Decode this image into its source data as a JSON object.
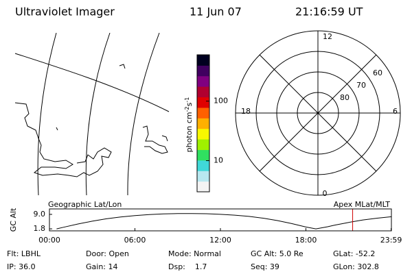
{
  "header": {
    "title": "Ultraviolet Imager",
    "date": "11 Jun 07",
    "time": "21:16:59 UT"
  },
  "colorbar": {
    "label_parts": [
      "photon cm",
      "-2",
      "s",
      "-1"
    ],
    "log": true,
    "lim": [
      3,
      600
    ],
    "ticks": [
      10,
      100
    ],
    "colors": [
      "#f4f4f4",
      "#b8e8f0",
      "#40d8d8",
      "#30e060",
      "#a0f000",
      "#f8f800",
      "#ffb000",
      "#ff6000",
      "#e00000",
      "#b00030",
      "#800080",
      "#400060",
      "#000020"
    ]
  },
  "polar": {
    "lat_min": 50,
    "rings": [
      60,
      70,
      80
    ],
    "mlt_labels": {
      "top": "12",
      "right": "6",
      "bottom": "0",
      "left": "18"
    }
  },
  "timeline": {
    "title_left": "Geographic Lat/Lon",
    "title_right": "Apex MLat/MLT",
    "y_label": "GC Alt",
    "ylim": [
      0.8,
      11.7
    ],
    "yticks": [
      {
        "value": 9.0,
        "label": "9.0"
      },
      {
        "value": 1.8,
        "label": "1.8"
      }
    ],
    "xlim": [
      0,
      24
    ],
    "xticks": [
      {
        "value": 0,
        "label": "00:00"
      },
      {
        "value": 6,
        "label": "06:00"
      },
      {
        "value": 12,
        "label": "12:00"
      },
      {
        "value": 18,
        "label": "18:00"
      },
      {
        "value": 23.98,
        "label": "23:59"
      }
    ],
    "x": [
      0.5,
      1,
      2,
      3,
      4,
      5,
      6,
      7,
      8,
      9,
      10,
      11,
      12,
      13,
      14,
      15,
      16,
      17,
      18,
      18.7,
      19.5,
      20,
      21,
      22,
      23,
      24
    ],
    "values": [
      1.8,
      2.6,
      4.2,
      5.6,
      6.8,
      7.7,
      8.4,
      8.9,
      9.2,
      9.4,
      9.4,
      9.3,
      9.0,
      8.6,
      8.0,
      7.1,
      5.9,
      4.4,
      2.7,
      1.8,
      2.8,
      3.6,
      5.0,
      6.2,
      7.1,
      7.8
    ],
    "color": "#000000",
    "current_hour": 21.28,
    "current_color": "#d00000"
  },
  "footer": {
    "rows": [
      [
        "Flt: LBHL",
        "Door: Open",
        "Mode: Normal",
        "GC Alt: 5.0 Re",
        "GLat: -52.2"
      ],
      [
        "IP: 36.0",
        "Gain: 14",
        "Dsp:    1.7",
        "Seq: 39",
        "GLon: 302.8"
      ]
    ]
  }
}
